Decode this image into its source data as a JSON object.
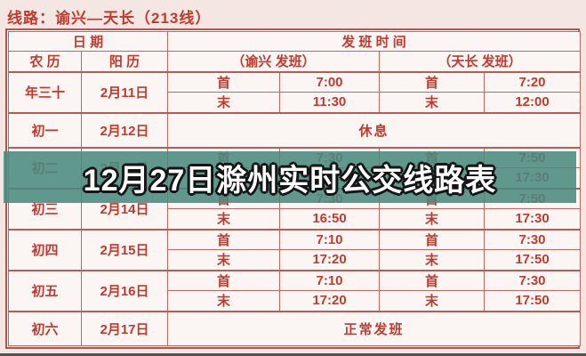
{
  "page": {
    "title": "线路：谕兴—天长（213线）",
    "overlay_banner": "12月27日滁州实时公交线路表",
    "colors": {
      "accent_red": "#c13a2e",
      "border_red": "#b5544d",
      "overlay_teal": "#4a8a7d",
      "page_bg": "#f3e6e3",
      "cell_bg": "#fbf5f3",
      "banner_text": "#ffffff",
      "bottom_strip": "#4c5652"
    }
  },
  "table": {
    "headers": {
      "date_group": "日 期",
      "time_group": "发 班 时 间",
      "lunar": "农 历",
      "solar": "阳 历",
      "yuxing_group": "（谕兴 发班）",
      "tianchang_group": "（天长 发班）"
    },
    "labels": {
      "first": "首",
      "last": "末"
    },
    "rows": [
      {
        "lunar": "年三十",
        "solar": "2月11日",
        "yuxing": {
          "first": "7:00",
          "last": "11:30"
        },
        "tianchang": {
          "first": "7:20",
          "last": "12:00"
        }
      },
      {
        "lunar": "初一",
        "solar": "2月12日",
        "note": "休息"
      },
      {
        "lunar": "初二",
        "solar": "2月13日",
        "yuxing": {
          "first": "7:30",
          "last": "16:50"
        },
        "tianchang": {
          "first": "7:50",
          "last": "17:30"
        }
      },
      {
        "lunar": "初三",
        "solar": "2月14日",
        "yuxing": {
          "first": "7:30",
          "last": "16:50"
        },
        "tianchang": {
          "first": "7:50",
          "last": "17:30"
        }
      },
      {
        "lunar": "初四",
        "solar": "2月15日",
        "yuxing": {
          "first": "7:10",
          "last": "17:20"
        },
        "tianchang": {
          "first": "7:30",
          "last": "17:50"
        }
      },
      {
        "lunar": "初五",
        "solar": "2月16日",
        "yuxing": {
          "first": "7:10",
          "last": "17:20"
        },
        "tianchang": {
          "first": "7:30",
          "last": "17:50"
        }
      },
      {
        "lunar": "初六",
        "solar": "2月17日",
        "note": "正常发班"
      }
    ]
  }
}
